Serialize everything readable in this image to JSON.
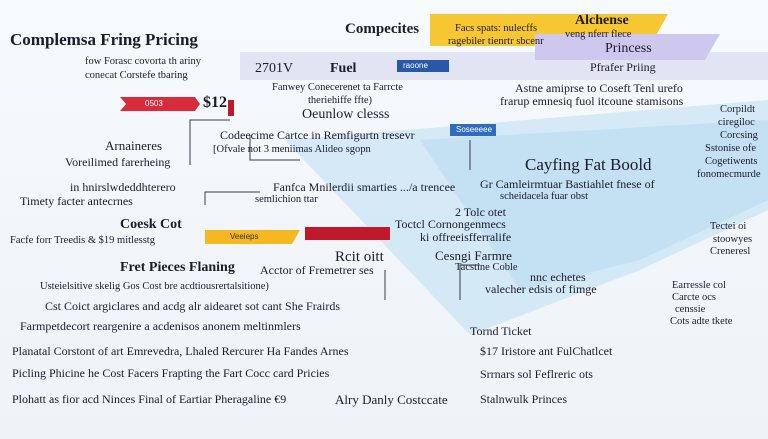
{
  "header": {
    "title": "Complemsa Fring Pricing",
    "subtitle": "Compecites"
  },
  "labels": [
    "Alchense",
    "Facs spats: nulecffs",
    "ragebiler tienrtr sbcenr",
    "veng nferr flece",
    "Princess",
    "Pfrafer Priing",
    "2701V",
    "Fuel",
    "raoone",
    "fow Forasc covorta th ariny",
    "conecat Corstefe tbaring",
    "Astne amiprse to Coseft Tenl urefo",
    "frarup emnesiq fuol itcoune stamisons",
    "Fanwey Conecerenet ta Farrcte",
    "theriehiffe ffte)",
    "Oeunlow clesss",
    "0503",
    "$12",
    "Corpildt",
    "ciregiloc",
    "Corcsing",
    "Sstonise ofe",
    "Cogetiwents",
    "fonomecmurde",
    "Arnaineres",
    "Codeecime Cartce in Remfigurtn tresevr",
    "[Ofvale not 3 meniimas Alideo sgopn",
    "Soseeeee",
    "Cayfing Fat Boold",
    "Voreilimed farerheing",
    "Gr Camleirmtuar Bastiahlet fnese of",
    "scheidacela fuar obst",
    "Fanfca Mnilerdii smarties .../a trencee",
    "semlichion ttar",
    "in hnirslwdeddhterero",
    "Timety facter antecrnes",
    "2 Tolc otet",
    "Toctcl Cornongenmecs",
    "ki offreeisfferralife",
    "Coesk Cot",
    "Facfe forr Treedis & $19 mitlesstg",
    "Veeieps",
    "Tectei oi",
    "stoowyes",
    "Creneresl",
    "Rcit oitt",
    "Cesngi Farmre",
    "Fret Pieces Flaning",
    "Acctor of Fremetrer ses",
    "Tacstine Coble",
    "nnc echetes",
    "valecher edsis of fimge",
    "Usteielsitive skelig Gos Cost bre acdtiousrertalsitione)",
    "Cst Coict argiclares and acdg alr aidearet sot cant She Frairds",
    "Earressle col",
    "Carcte ocs",
    "censsie",
    "Cots adte tkete",
    "Farmpetdecort reargenire a acdenisos anonem meltinmlers",
    "Tornd Ticket",
    "Planatal Corstont of art Emrevedra, Lhaled Rercurer Ha Fandes Arnes",
    "$17 Iristore ant FulChatlcet",
    "Picling Phicine he Cost Facers Frapting the Fart Cocc card Pricies",
    "Srrnars sol Feflreric ots",
    "Plohatt as fior acd Ninces Final of Eartiar Pheragaline €9",
    "Alry Danly Costccate",
    "Stalnwulk Princes"
  ]
}
